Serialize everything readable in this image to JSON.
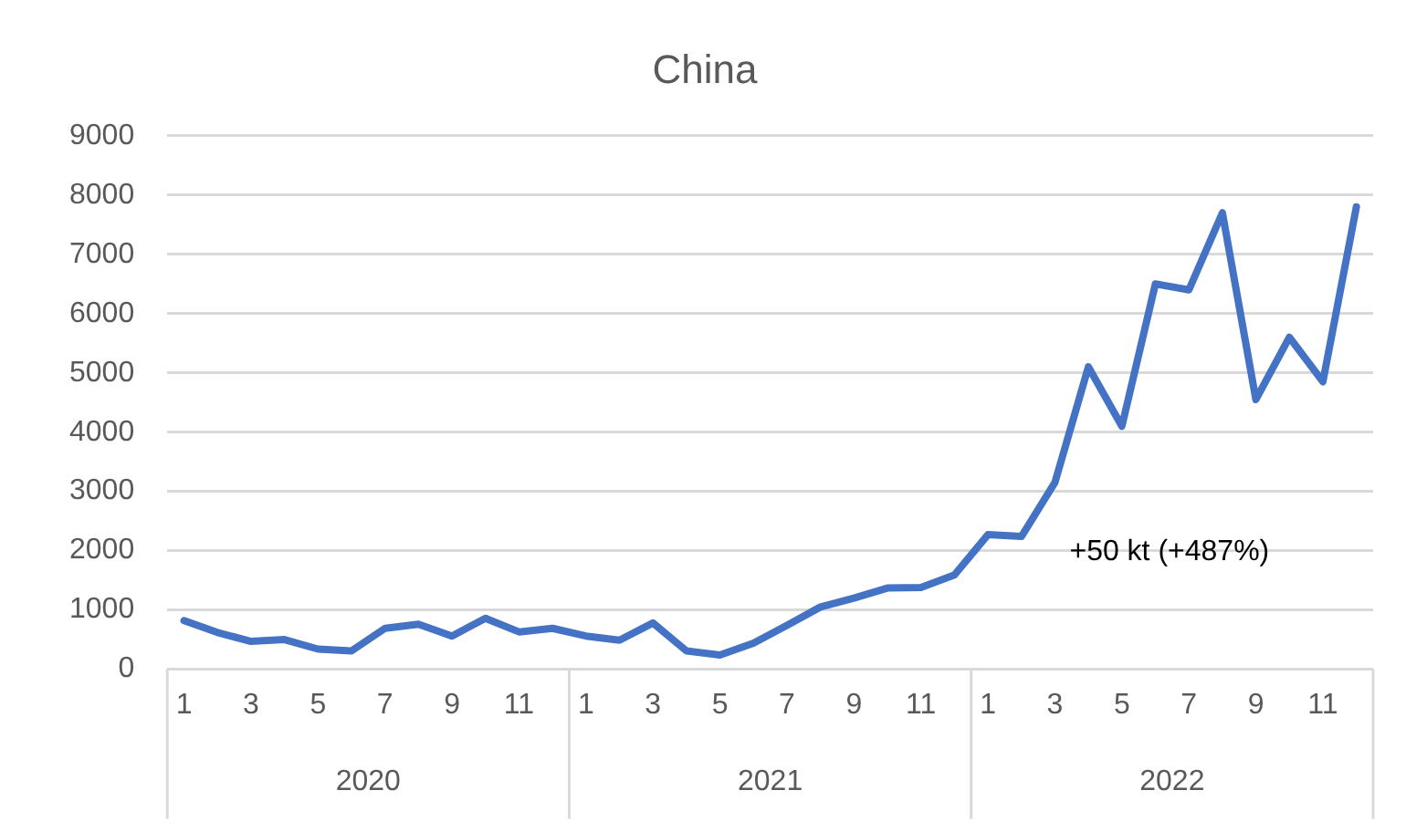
{
  "chart_data": {
    "type": "line",
    "title": "China",
    "categories": [
      "1",
      null,
      "3",
      null,
      "5",
      null,
      "7",
      null,
      "9",
      null,
      "11",
      null,
      "1",
      null,
      "3",
      null,
      "5",
      null,
      "7",
      null,
      "9",
      null,
      "11",
      null,
      "1",
      null,
      "3",
      null,
      "5",
      null,
      "7",
      null,
      "9",
      null,
      "11",
      null
    ],
    "series": [
      {
        "color": "#4472c4",
        "values": [
          820,
          620,
          470,
          500,
          340,
          310,
          690,
          760,
          560,
          860,
          630,
          690,
          560,
          490,
          780,
          310,
          240,
          440,
          740,
          1050,
          1200,
          1370,
          1380,
          1590,
          2270,
          2240,
          3150,
          5100,
          4100,
          6500,
          6400,
          7700,
          4550,
          5600,
          4850,
          7800
        ]
      }
    ],
    "ylim": [
      0,
      9000
    ],
    "yticks": [
      0,
      1000,
      2000,
      3000,
      4000,
      5000,
      6000,
      7000,
      8000,
      9000
    ],
    "annotations": [
      "+50 kt (+487%)",
      "2020",
      "2021",
      "2022"
    ],
    "grid": "y",
    "legend": false,
    "marker": "none",
    "line_style": "solid"
  }
}
